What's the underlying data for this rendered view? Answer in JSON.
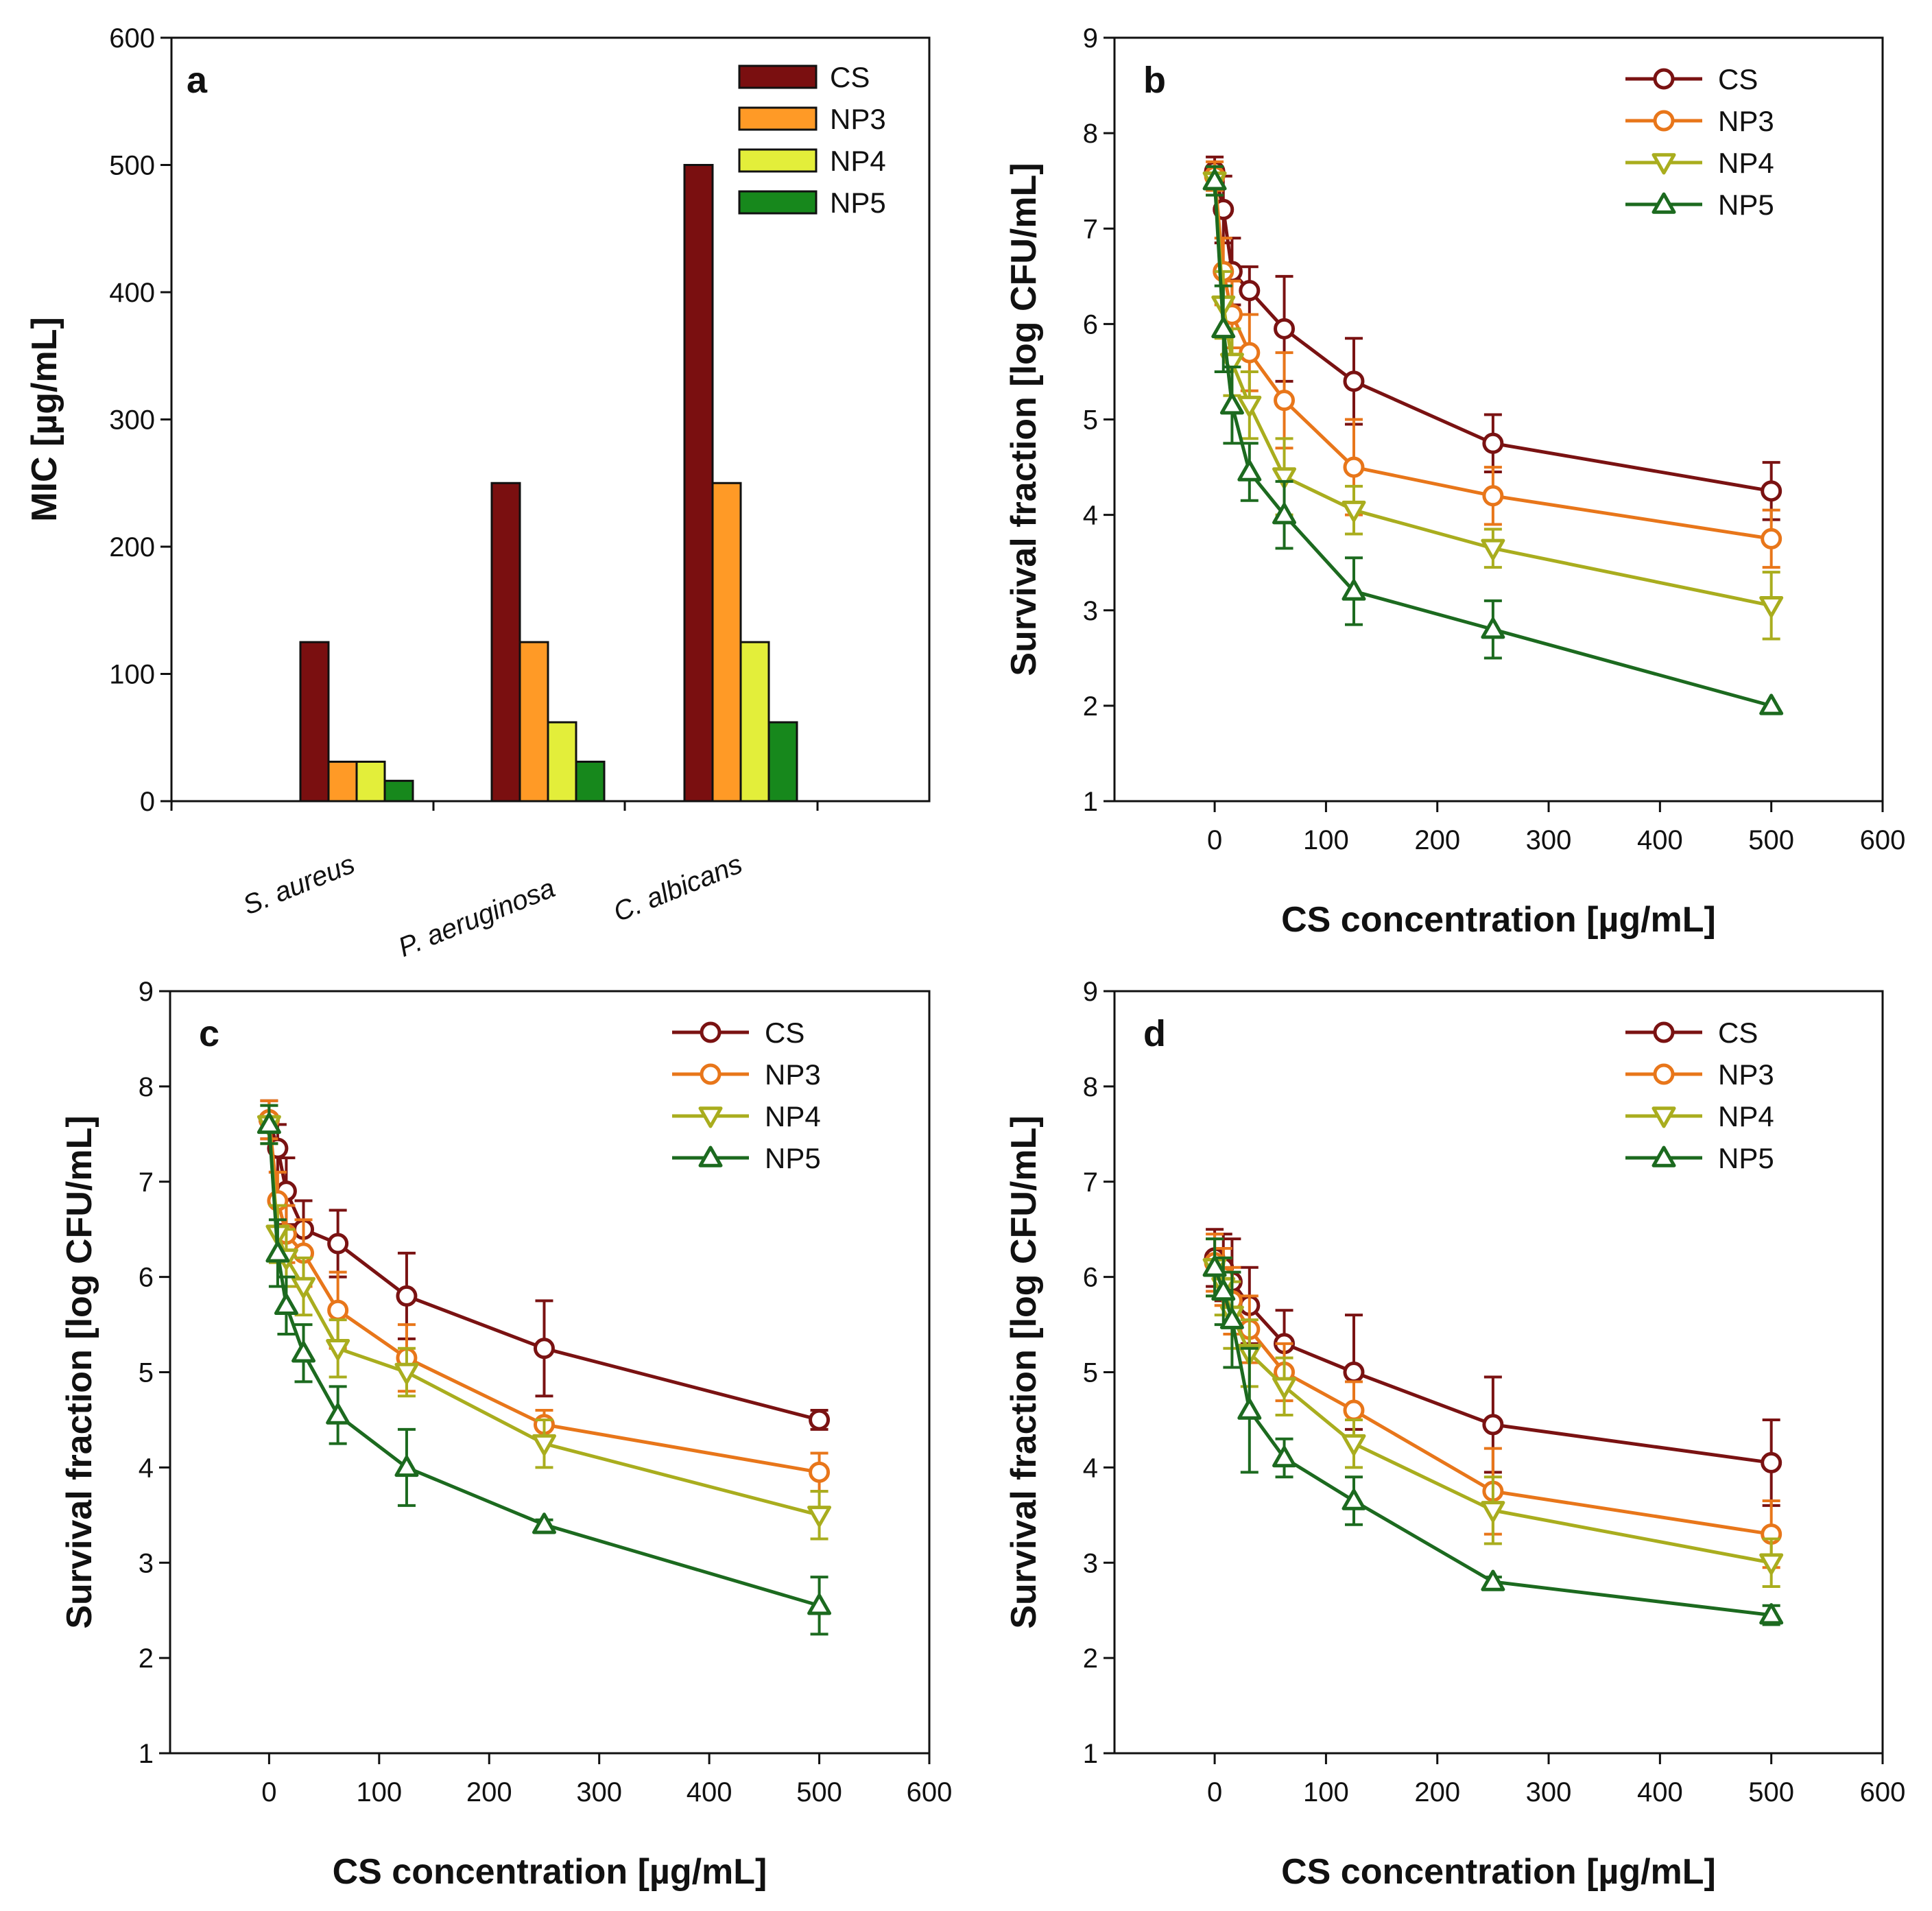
{
  "colors": {
    "CS": "#7a1212",
    "NP3": "#e8761a",
    "NP4": "#a9ad1e",
    "NP5": "#1c6a1f",
    "bar_CS": "#7a0f10",
    "bar_NP3": "#ff9a26",
    "bar_NP4": "#e3ee3a",
    "bar_NP5": "#17881c"
  },
  "chart_data": [
    {
      "panel": "a",
      "type": "bar",
      "ylabel": "MIC [µg/mL]",
      "xlabel": "",
      "ylim": [
        0,
        600
      ],
      "yticks": [
        0,
        100,
        200,
        300,
        400,
        500,
        600
      ],
      "categories": [
        "S. aureus",
        "P. aeruginosa",
        "C. albicans"
      ],
      "series": [
        {
          "name": "CS",
          "values": [
            125,
            250,
            500
          ]
        },
        {
          "name": "NP3",
          "values": [
            31,
            125,
            250
          ]
        },
        {
          "name": "NP4",
          "values": [
            31,
            62,
            125
          ]
        },
        {
          "name": "NP5",
          "values": [
            16,
            31,
            62
          ]
        }
      ],
      "legend": [
        "CS",
        "NP3",
        "NP4",
        "NP5"
      ],
      "legend_position": "top-right"
    },
    {
      "panel": "b",
      "type": "line",
      "xlabel": "CS concentration [µg/mL]",
      "ylabel": "Survival fraction [log CFU/mL]",
      "xlim": [
        -90,
        600
      ],
      "ylim": [
        1,
        9
      ],
      "xticks": [
        0,
        100,
        200,
        300,
        400,
        500,
        600
      ],
      "yticks": [
        1,
        2,
        3,
        4,
        5,
        6,
        7,
        8,
        9
      ],
      "x": [
        0,
        7.8,
        15.6,
        31.25,
        62.5,
        125,
        250,
        500
      ],
      "series": [
        {
          "name": "CS",
          "marker": "circle",
          "values": [
            7.6,
            7.2,
            6.55,
            6.35,
            5.95,
            5.4,
            4.75,
            4.25
          ],
          "errors": [
            0.15,
            0.35,
            0.35,
            0.25,
            0.55,
            0.45,
            0.3,
            0.3
          ]
        },
        {
          "name": "NP3",
          "marker": "circle",
          "values": [
            7.55,
            6.55,
            6.1,
            5.7,
            5.2,
            4.5,
            4.2,
            3.75
          ],
          "errors": [
            0.15,
            0.35,
            0.35,
            0.4,
            0.5,
            0.5,
            0.3,
            0.3
          ]
        },
        {
          "name": "NP4",
          "marker": "triangle-down",
          "values": [
            7.5,
            6.2,
            5.6,
            5.15,
            4.4,
            4.05,
            3.65,
            3.05
          ],
          "errors": [
            0.15,
            0.35,
            0.35,
            0.35,
            0.4,
            0.25,
            0.2,
            0.35
          ]
        },
        {
          "name": "NP5",
          "marker": "triangle-up",
          "values": [
            7.5,
            5.95,
            5.15,
            4.45,
            4.0,
            3.2,
            2.8,
            2.0
          ],
          "errors": [
            0.15,
            0.45,
            0.4,
            0.3,
            0.35,
            0.35,
            0.3,
            0.0
          ]
        }
      ],
      "legend": [
        "CS",
        "NP3",
        "NP4",
        "NP5"
      ],
      "legend_position": "top-right"
    },
    {
      "panel": "c",
      "type": "line",
      "xlabel": "CS concentration [µg/mL]",
      "ylabel": "Survival fraction [log CFU/mL]",
      "xlim": [
        -90,
        600
      ],
      "ylim": [
        1,
        9
      ],
      "xticks": [
        0,
        100,
        200,
        300,
        400,
        500,
        600
      ],
      "yticks": [
        1,
        2,
        3,
        4,
        5,
        6,
        7,
        8,
        9
      ],
      "x": [
        0,
        7.8,
        15.6,
        31.25,
        62.5,
        125,
        250,
        500
      ],
      "series": [
        {
          "name": "CS",
          "marker": "circle",
          "values": [
            7.65,
            7.35,
            6.9,
            6.5,
            6.35,
            5.8,
            5.25,
            4.5
          ],
          "errors": [
            0.2,
            0.25,
            0.35,
            0.3,
            0.35,
            0.45,
            0.5,
            0.1
          ]
        },
        {
          "name": "NP3",
          "marker": "circle",
          "values": [
            7.65,
            6.8,
            6.45,
            6.25,
            5.65,
            5.15,
            4.45,
            3.95
          ],
          "errors": [
            0.2,
            0.3,
            0.3,
            0.35,
            0.4,
            0.35,
            0.15,
            0.2
          ]
        },
        {
          "name": "NP4",
          "marker": "triangle-down",
          "values": [
            7.6,
            6.45,
            6.2,
            5.9,
            5.25,
            5.0,
            4.25,
            3.5
          ],
          "errors": [
            0.2,
            0.3,
            0.3,
            0.3,
            0.3,
            0.25,
            0.25,
            0.25
          ]
        },
        {
          "name": "NP5",
          "marker": "triangle-up",
          "values": [
            7.6,
            6.25,
            5.7,
            5.2,
            4.55,
            4.0,
            3.4,
            2.55
          ],
          "errors": [
            0.2,
            0.35,
            0.3,
            0.3,
            0.3,
            0.4,
            0.05,
            0.3
          ]
        }
      ],
      "legend": [
        "CS",
        "NP3",
        "NP4",
        "NP5"
      ],
      "legend_position": "top-right"
    },
    {
      "panel": "d",
      "type": "line",
      "xlabel": "CS concentration [µg/mL]",
      "ylabel": "Survival fraction [log CFU/mL]",
      "xlim": [
        -90,
        600
      ],
      "ylim": [
        1,
        9
      ],
      "xticks": [
        0,
        100,
        200,
        300,
        400,
        500,
        600
      ],
      "yticks": [
        1,
        2,
        3,
        4,
        5,
        6,
        7,
        8,
        9
      ],
      "x": [
        0,
        7.8,
        15.6,
        31.25,
        62.5,
        125,
        250,
        500
      ],
      "series": [
        {
          "name": "CS",
          "marker": "circle",
          "values": [
            6.2,
            6.1,
            5.95,
            5.7,
            5.3,
            5.0,
            4.45,
            4.05
          ],
          "errors": [
            0.3,
            0.35,
            0.45,
            0.4,
            0.35,
            0.6,
            0.5,
            0.45
          ]
        },
        {
          "name": "NP3",
          "marker": "circle",
          "values": [
            6.15,
            6.0,
            5.75,
            5.45,
            5.0,
            4.6,
            3.75,
            3.3
          ],
          "errors": [
            0.3,
            0.3,
            0.35,
            0.35,
            0.3,
            0.3,
            0.45,
            0.35
          ]
        },
        {
          "name": "NP4",
          "marker": "triangle-down",
          "values": [
            6.1,
            5.9,
            5.6,
            5.2,
            4.85,
            4.25,
            3.55,
            3.0
          ],
          "errors": [
            0.3,
            0.3,
            0.35,
            0.35,
            0.3,
            0.25,
            0.35,
            0.25
          ]
        },
        {
          "name": "NP5",
          "marker": "triangle-up",
          "values": [
            6.1,
            5.85,
            5.55,
            4.6,
            4.1,
            3.65,
            2.8,
            2.45
          ],
          "errors": [
            0.3,
            0.35,
            0.5,
            0.65,
            0.2,
            0.25,
            0.05,
            0.1
          ]
        }
      ],
      "legend": [
        "CS",
        "NP3",
        "NP4",
        "NP5"
      ],
      "legend_position": "top-right"
    }
  ]
}
